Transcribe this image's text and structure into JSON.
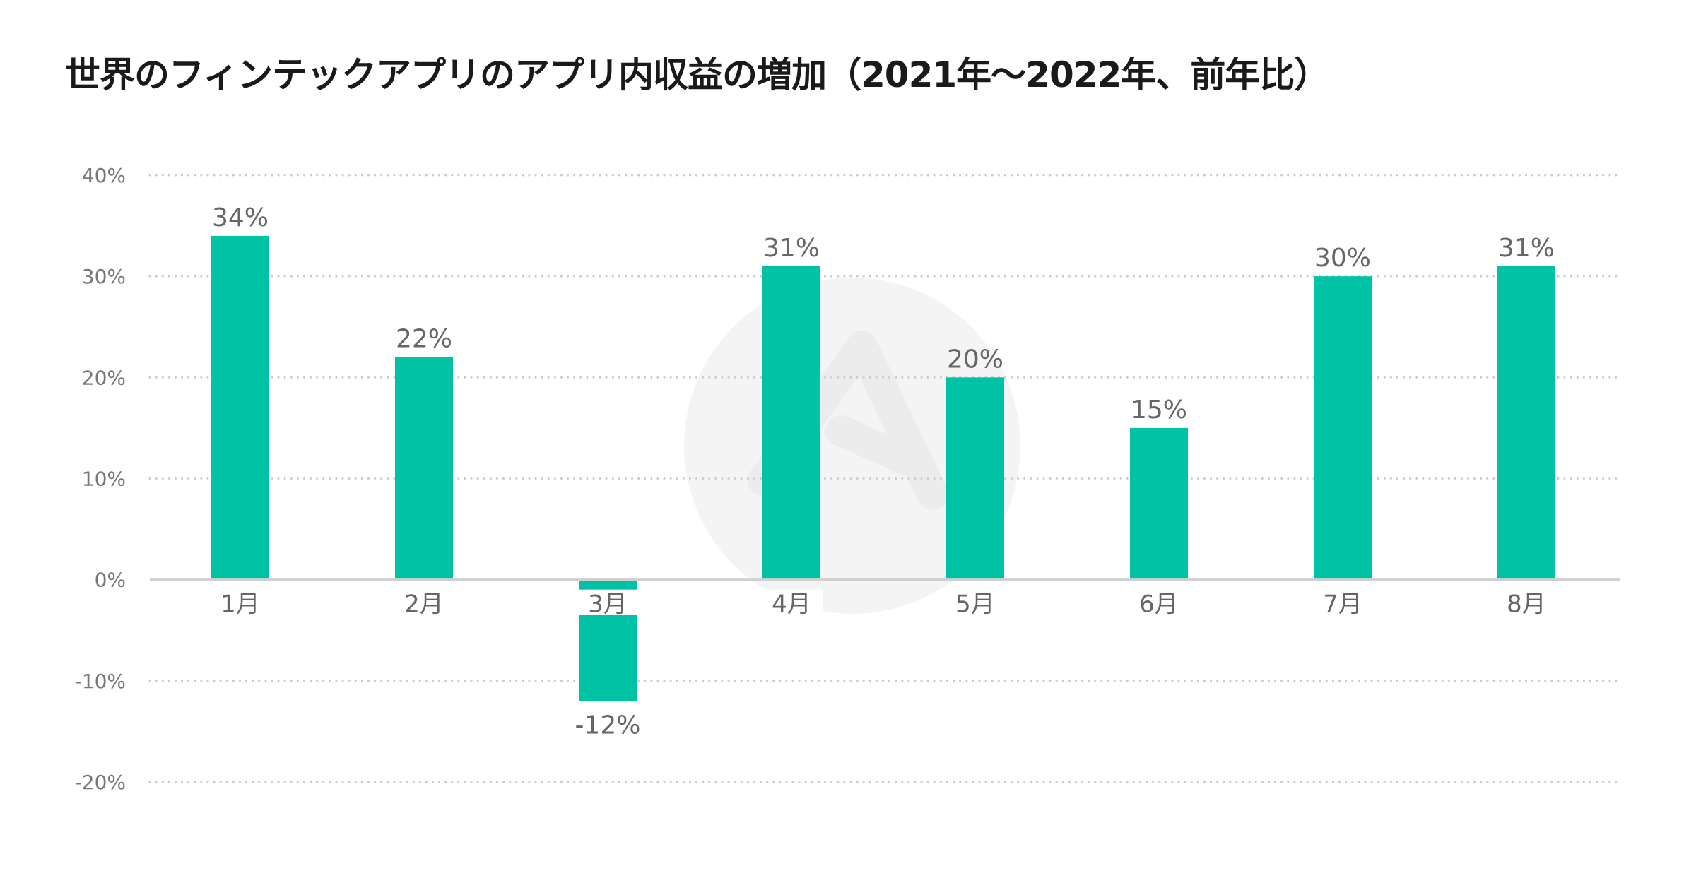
{
  "chart_data": {
    "type": "bar",
    "title": "世界のフィンテックアプリのアプリ内収益の増加（2021年〜2022年、前年比）",
    "categories": [
      "1月",
      "2月",
      "3月",
      "4月",
      "5月",
      "6月",
      "7月",
      "8月"
    ],
    "values": [
      34,
      22,
      -12,
      31,
      20,
      15,
      30,
      31
    ],
    "data_labels": [
      "34%",
      "22%",
      "-12%",
      "31%",
      "20%",
      "15%",
      "30%",
      "31%"
    ],
    "ylim": [
      -20,
      40
    ],
    "yticks": [
      40,
      30,
      20,
      10,
      0,
      -10,
      -20
    ],
    "ytick_labels": [
      "40%",
      "30%",
      "20%",
      "10%",
      "0%",
      "-10%",
      "-20%"
    ],
    "xlabel": "",
    "ylabel": "",
    "grid": true,
    "legend": "none",
    "colors": {
      "bar": "#00c2a5",
      "grid": "#cccccc",
      "axis": "#cfcfcf",
      "label": "#666666",
      "watermark": "#f4f4f4"
    }
  }
}
